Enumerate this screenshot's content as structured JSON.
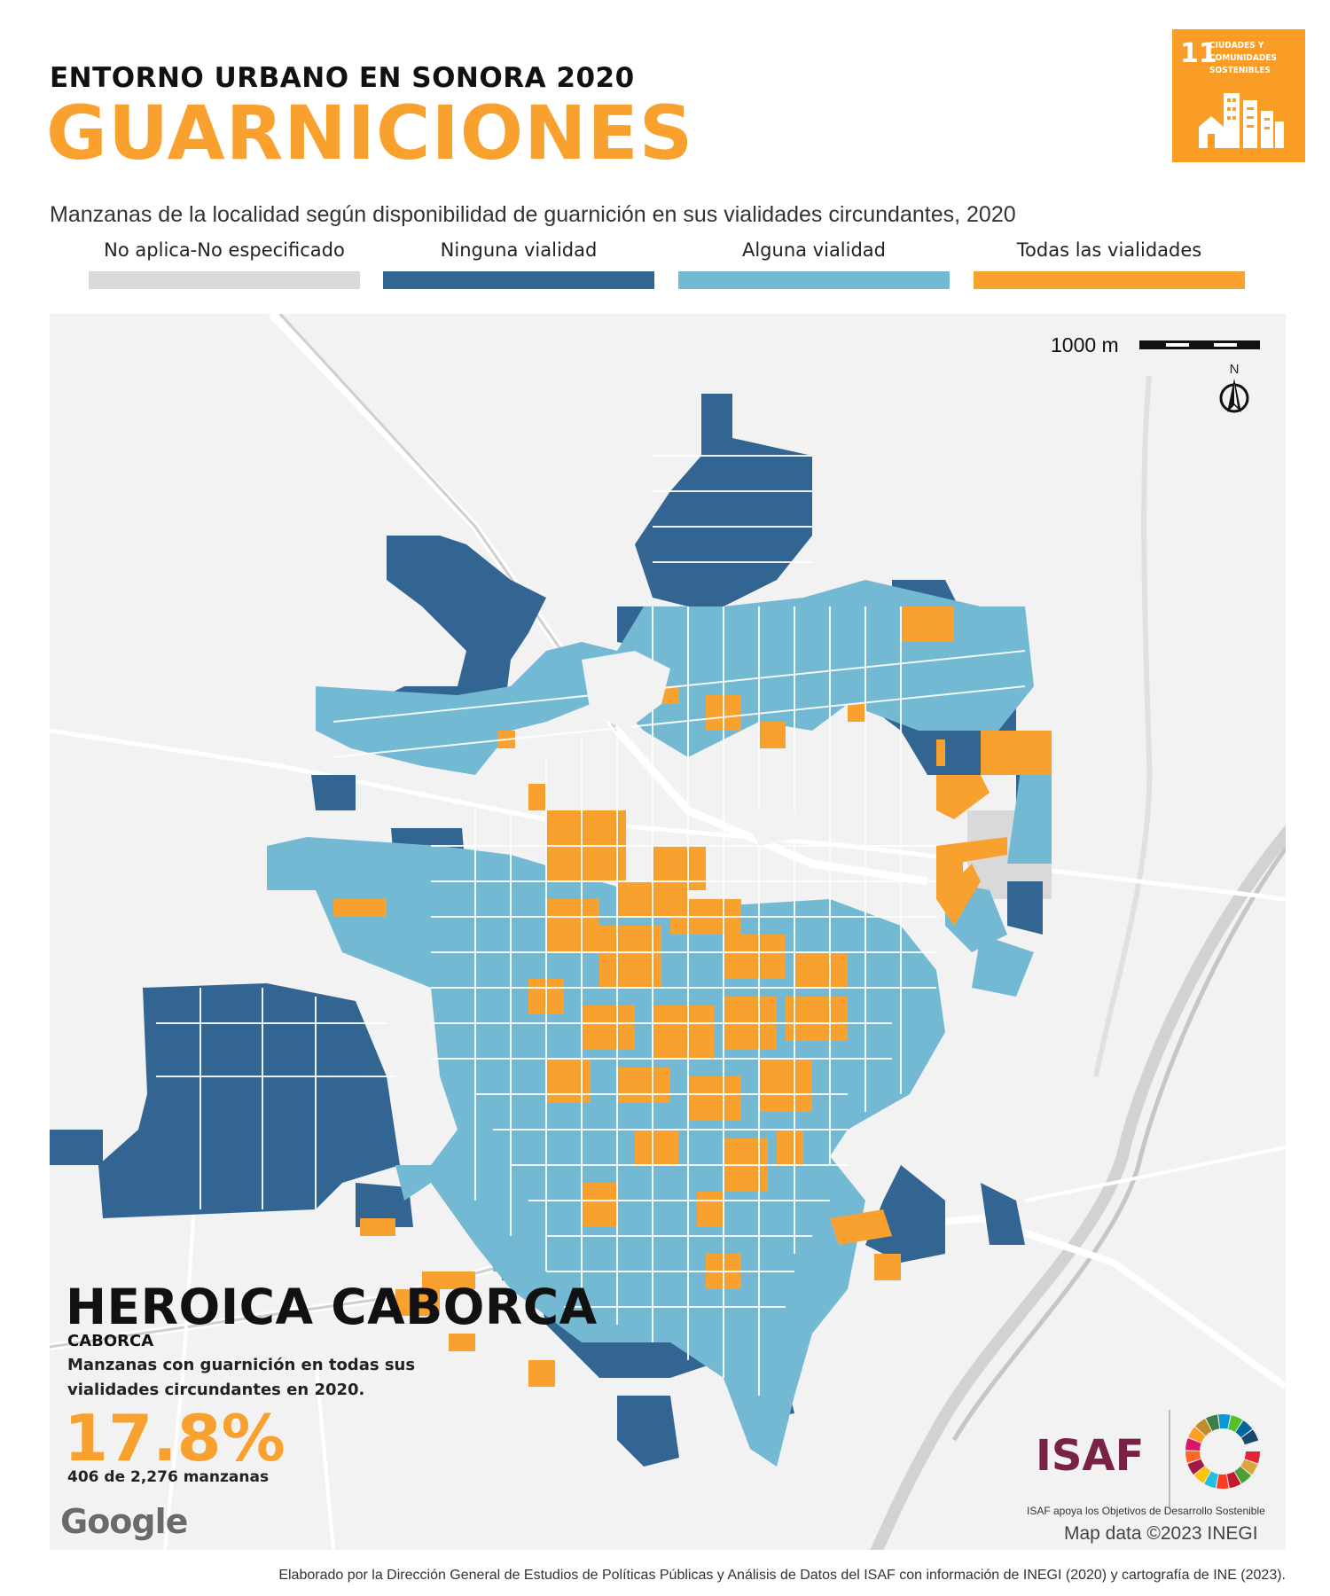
{
  "header": {
    "kicker": "ENTORNO URBANO EN SONORA 2020",
    "title": "GUARNICIONES",
    "subtitle": "Manzanas de la localidad según disponibilidad de guarnición en sus vialidades circundantes, 2020"
  },
  "legend": [
    {
      "label": "No aplica-No especificado",
      "color": "#d9d9d9"
    },
    {
      "label": "Ninguna vialidad",
      "color": "#336592"
    },
    {
      "label": "Alguna vialidad",
      "color": "#73b9d4"
    },
    {
      "label": "Todas las vialidades",
      "color": "#f9a12e"
    }
  ],
  "sdg_badge": {
    "number": "11",
    "line1": "CIUDADES Y",
    "line2": "COMUNIDADES",
    "line3": "SOSTENIBLES"
  },
  "map": {
    "scale_label": "1000 m",
    "north_label": "N",
    "attribution": "Map data ©2023 INEGI",
    "google_logo": "Google"
  },
  "stats": {
    "locality": "HEROICA CABORCA",
    "municipality": "CABORCA",
    "description": "Manzanas con guarnición en todas sus vialidades circundantes en 2020.",
    "percent": "17.8%",
    "count_text": "406 de 2,276 manzanas"
  },
  "logos": {
    "isaf": "ISAF",
    "isaf_tagline": "ISAF apoya los Objetivos de Desarrollo Sostenible"
  },
  "footer": "Elaborado por la Dirección General de Estudios de Políticas Públicas y Análisis de Datos del ISAF con información de INEGI (2020) y cartografía de INE (2023)."
}
